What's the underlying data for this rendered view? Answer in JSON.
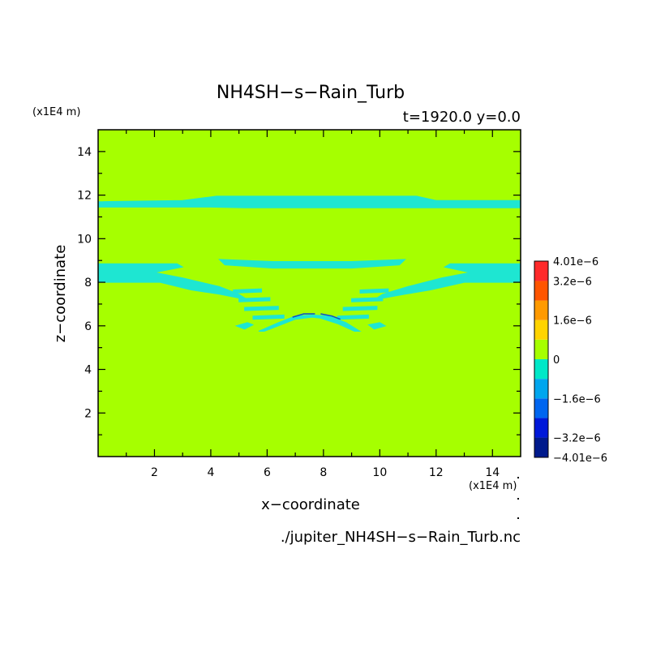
{
  "chart_data": {
    "type": "heatmap",
    "title": "NH4SH−s−Rain_Turb",
    "subtitle": "t=1920.0 y=0.0",
    "xlabel": "x−coordinate",
    "ylabel": "z−coordinate",
    "x_unit": "(x1E4 m)",
    "y_unit": "(x1E4 m)",
    "xlim": [
      0,
      15
    ],
    "ylim": [
      0,
      15
    ],
    "x_ticks": [
      2,
      4,
      6,
      8,
      10,
      12,
      14
    ],
    "y_ticks": [
      2,
      4,
      6,
      8,
      10,
      12,
      14
    ],
    "source_file": "./jupiter_NH4SH−s−Rain_Turb.nc",
    "background_value": 0,
    "colorbar": {
      "levels": [
        -4.01e-06,
        -3.2e-06,
        -2.4e-06,
        -1.6e-06,
        -8e-07,
        0,
        8e-07,
        1.6e-06,
        2.4e-06,
        3.2e-06,
        4.01e-06
      ],
      "colors": [
        "#001a8c",
        "#0019d9",
        "#0066f0",
        "#00a6ee",
        "#00e8c8",
        "#a6ff00",
        "#ffd400",
        "#ff9a00",
        "#ff5500",
        "#ff2a2a"
      ],
      "tick_labels": [
        {
          "value": 4.01e-06,
          "label": "4.01e−6"
        },
        {
          "value": 3.2e-06,
          "label": "3.2e−6"
        },
        {
          "value": 1.6e-06,
          "label": "1.6e−6"
        },
        {
          "value": 0,
          "label": "0"
        },
        {
          "value": -1.6e-06,
          "label": "−1.6e−6"
        },
        {
          "value": -3.2e-06,
          "label": "−3.2e−6"
        },
        {
          "value": -4.01e-06,
          "label": "−4.01e−6"
        }
      ]
    },
    "anomaly_color": "#1ee6d2",
    "anomaly_value_range": [
      -8e-07,
      0
    ],
    "anomaly_regions": [
      {
        "name": "upper-layer",
        "outline": [
          [
            0,
            11.45
          ],
          [
            4.0,
            11.45
          ],
          [
            5.2,
            11.42
          ],
          [
            8.0,
            11.42
          ],
          [
            10.7,
            11.42
          ],
          [
            12.4,
            11.42
          ],
          [
            15,
            11.42
          ],
          [
            15,
            11.75
          ],
          [
            12.0,
            11.75
          ],
          [
            11.3,
            11.95
          ],
          [
            8.0,
            11.95
          ],
          [
            4.2,
            11.95
          ],
          [
            3.0,
            11.75
          ],
          [
            0,
            11.7
          ]
        ]
      },
      {
        "name": "mid-layer",
        "outline": [
          [
            0,
            8.0
          ],
          [
            2.2,
            8.0
          ],
          [
            3.3,
            7.65
          ],
          [
            4.3,
            7.45
          ],
          [
            5.3,
            7.2
          ],
          [
            5.0,
            7.45
          ],
          [
            4.3,
            7.8
          ],
          [
            3.0,
            8.2
          ],
          [
            2.0,
            8.45
          ],
          [
            3.0,
            8.7
          ],
          [
            2.8,
            8.85
          ],
          [
            0,
            8.85
          ]
        ]
      },
      {
        "name": "mid-layer-right",
        "outline": [
          [
            15,
            8.0
          ],
          [
            13.0,
            8.0
          ],
          [
            11.8,
            7.65
          ],
          [
            10.9,
            7.45
          ],
          [
            9.8,
            7.2
          ],
          [
            10.1,
            7.45
          ],
          [
            11.0,
            7.8
          ],
          [
            12.2,
            8.2
          ],
          [
            13.2,
            8.45
          ],
          [
            12.3,
            8.7
          ],
          [
            12.5,
            8.85
          ],
          [
            15,
            8.85
          ]
        ]
      },
      {
        "name": "mid-bridge",
        "outline": [
          [
            4.3,
            9.05
          ],
          [
            6.2,
            8.95
          ],
          [
            9.0,
            8.95
          ],
          [
            10.9,
            9.05
          ],
          [
            10.7,
            8.8
          ],
          [
            9.0,
            8.65
          ],
          [
            6.2,
            8.65
          ],
          [
            4.5,
            8.8
          ]
        ]
      },
      {
        "name": "arch",
        "outline": [
          [
            5.7,
            5.75
          ],
          [
            6.4,
            6.15
          ],
          [
            7.0,
            6.45
          ],
          [
            7.6,
            6.5
          ],
          [
            8.2,
            6.45
          ],
          [
            8.8,
            6.15
          ],
          [
            9.3,
            5.75
          ],
          [
            9.1,
            5.75
          ],
          [
            8.5,
            6.1
          ],
          [
            7.9,
            6.35
          ],
          [
            7.6,
            6.4
          ],
          [
            7.0,
            6.3
          ],
          [
            6.4,
            6.0
          ],
          [
            5.9,
            5.75
          ]
        ]
      },
      {
        "name": "dash-l1",
        "outline": [
          [
            4.8,
            7.65
          ],
          [
            5.8,
            7.7
          ],
          [
            5.8,
            7.55
          ],
          [
            4.8,
            7.5
          ]
        ]
      },
      {
        "name": "dash-l2",
        "outline": [
          [
            5.0,
            7.25
          ],
          [
            6.1,
            7.3
          ],
          [
            6.1,
            7.15
          ],
          [
            5.0,
            7.1
          ]
        ]
      },
      {
        "name": "dash-l3",
        "outline": [
          [
            5.2,
            6.85
          ],
          [
            6.4,
            6.9
          ],
          [
            6.4,
            6.75
          ],
          [
            5.2,
            6.7
          ]
        ]
      },
      {
        "name": "dash-l4",
        "outline": [
          [
            5.5,
            6.45
          ],
          [
            6.6,
            6.5
          ],
          [
            6.6,
            6.35
          ],
          [
            5.5,
            6.3
          ]
        ]
      },
      {
        "name": "dash-r1",
        "outline": [
          [
            9.3,
            7.65
          ],
          [
            10.3,
            7.7
          ],
          [
            10.3,
            7.55
          ],
          [
            9.3,
            7.5
          ]
        ]
      },
      {
        "name": "dash-r2",
        "outline": [
          [
            9.0,
            7.25
          ],
          [
            10.1,
            7.3
          ],
          [
            10.1,
            7.15
          ],
          [
            9.0,
            7.1
          ]
        ]
      },
      {
        "name": "dash-r3",
        "outline": [
          [
            8.7,
            6.85
          ],
          [
            9.9,
            6.9
          ],
          [
            9.9,
            6.75
          ],
          [
            8.7,
            6.7
          ]
        ]
      },
      {
        "name": "dash-r4",
        "outline": [
          [
            8.5,
            6.45
          ],
          [
            9.6,
            6.5
          ],
          [
            9.6,
            6.35
          ],
          [
            8.5,
            6.3
          ]
        ]
      },
      {
        "name": "blob-l",
        "outline": [
          [
            4.9,
            6.0
          ],
          [
            5.3,
            6.15
          ],
          [
            5.5,
            6.05
          ],
          [
            5.2,
            5.85
          ]
        ]
      },
      {
        "name": "blob-r",
        "outline": [
          [
            9.6,
            6.05
          ],
          [
            10.0,
            6.15
          ],
          [
            10.2,
            6.0
          ],
          [
            9.8,
            5.85
          ]
        ]
      }
    ],
    "contour_segments": [
      {
        "name": "arch-contour-left",
        "line": [
          [
            6.9,
            6.4
          ],
          [
            7.3,
            6.55
          ],
          [
            7.7,
            6.55
          ]
        ]
      },
      {
        "name": "arch-contour-right",
        "line": [
          [
            7.9,
            6.55
          ],
          [
            8.3,
            6.45
          ],
          [
            8.6,
            6.3
          ]
        ]
      }
    ],
    "grid": false
  }
}
